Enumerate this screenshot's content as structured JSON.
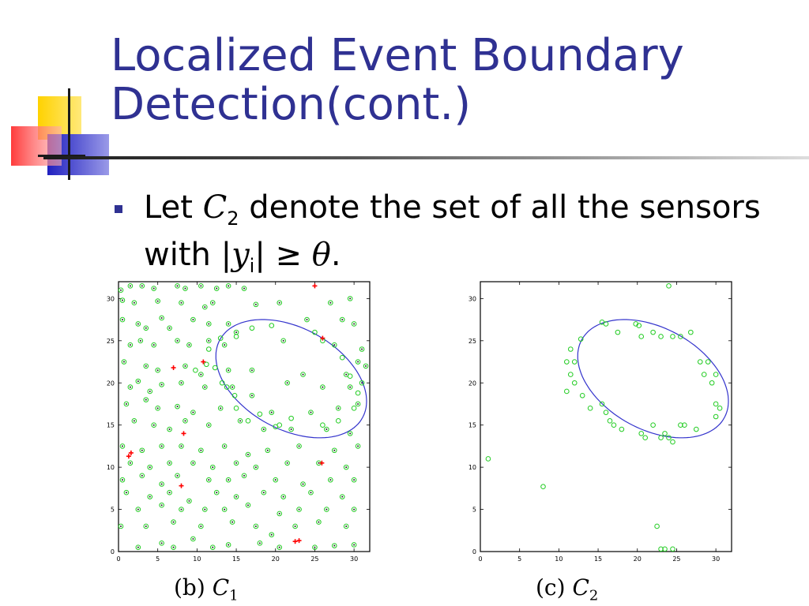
{
  "title_line1": "Localized Event Boundary",
  "title_line2": "Detection(cont.)",
  "bullet": {
    "part1": "Let ",
    "var_c": "C",
    "sub_2": "2",
    "part2": " denote the set of all the sensors",
    "line2_prefix": "with |",
    "var_y": "y",
    "sub_i": "i",
    "line2_mid": "| ≥ ",
    "theta": "θ",
    "line2_end": "."
  },
  "colors": {
    "title": "#2f3192",
    "bullet": "#2f3192",
    "sensor_green": "#22cc22",
    "sensor_red": "#ff0000",
    "ellipse": "#3333cc",
    "deco_yellow": "#ffd200",
    "deco_blue": "#2020c0",
    "deco_red": "#ff3030"
  },
  "chart_data": [
    {
      "type": "scatter",
      "caption_label": "(b)",
      "caption_var": "C",
      "caption_sub": "1",
      "xlim": [
        0,
        32
      ],
      "ylim": [
        0,
        32
      ],
      "xticks": [
        0,
        5,
        10,
        15,
        20,
        25,
        30
      ],
      "yticks": [
        0,
        5,
        10,
        15,
        20,
        25,
        30
      ],
      "ellipse": {
        "cx": 22.0,
        "cy": 20.5,
        "rx": 10.2,
        "ry": 6.1,
        "angle_deg": -25
      },
      "series": [
        {
          "marker": "circle-dot",
          "points": [
            [
              0.3,
              31.0
            ],
            [
              1.5,
              31.5
            ],
            [
              3.0,
              31.5
            ],
            [
              4.5,
              31.2
            ],
            [
              7.5,
              31.5
            ],
            [
              8.5,
              31.2
            ],
            [
              10.5,
              31.5
            ],
            [
              12.5,
              31.2
            ],
            [
              14.0,
              31.5
            ],
            [
              16.0,
              31.2
            ],
            [
              0.5,
              29.8
            ],
            [
              2.0,
              29.5
            ],
            [
              5.0,
              29.7
            ],
            [
              8.0,
              29.5
            ],
            [
              11.0,
              29.0
            ],
            [
              12.0,
              29.5
            ],
            [
              17.5,
              29.3
            ],
            [
              20.5,
              29.5
            ],
            [
              27.0,
              29.5
            ],
            [
              29.5,
              30.0
            ],
            [
              0.5,
              27.5
            ],
            [
              2.5,
              27.0
            ],
            [
              3.5,
              26.5
            ],
            [
              5.5,
              27.7
            ],
            [
              6.5,
              26.5
            ],
            [
              9.5,
              27.5
            ],
            [
              11.5,
              27.0
            ],
            [
              14.0,
              27.0
            ],
            [
              15.0,
              26.0
            ],
            [
              24.0,
              27.5
            ],
            [
              28.5,
              27.5
            ],
            [
              30.0,
              27.0
            ],
            [
              1.5,
              24.5
            ],
            [
              2.8,
              25.0
            ],
            [
              4.5,
              24.5
            ],
            [
              7.5,
              25.0
            ],
            [
              9.0,
              24.5
            ],
            [
              11.5,
              25.0
            ],
            [
              13.5,
              24.5
            ],
            [
              21.0,
              25.0
            ],
            [
              27.5,
              24.5
            ],
            [
              31.0,
              24.0
            ],
            [
              0.7,
              22.5
            ],
            [
              3.5,
              22.0
            ],
            [
              5.0,
              21.5
            ],
            [
              8.5,
              22.0
            ],
            [
              10.5,
              21.0
            ],
            [
              14.0,
              21.5
            ],
            [
              17.0,
              21.5
            ],
            [
              23.5,
              21.0
            ],
            [
              29.0,
              21.0
            ],
            [
              30.5,
              22.5
            ],
            [
              1.5,
              19.5
            ],
            [
              2.5,
              20.2
            ],
            [
              4.0,
              19.0
            ],
            [
              5.5,
              19.8
            ],
            [
              8.0,
              20.0
            ],
            [
              11.0,
              19.5
            ],
            [
              14.5,
              19.5
            ],
            [
              17.0,
              18.5
            ],
            [
              21.5,
              20.0
            ],
            [
              26.0,
              19.5
            ],
            [
              29.5,
              19.5
            ],
            [
              31.0,
              20.0
            ],
            [
              1.0,
              17.5
            ],
            [
              3.5,
              18.0
            ],
            [
              5.0,
              17.0
            ],
            [
              7.5,
              17.2
            ],
            [
              9.5,
              16.5
            ],
            [
              13.0,
              17.0
            ],
            [
              19.5,
              16.5
            ],
            [
              24.5,
              16.5
            ],
            [
              28.0,
              17.0
            ],
            [
              30.5,
              17.5
            ],
            [
              2.0,
              15.5
            ],
            [
              4.5,
              15.0
            ],
            [
              6.5,
              14.5
            ],
            [
              8.5,
              15.5
            ],
            [
              11.5,
              15.0
            ],
            [
              15.5,
              15.5
            ],
            [
              18.5,
              14.5
            ],
            [
              22.0,
              14.5
            ],
            [
              26.5,
              14.5
            ],
            [
              29.5,
              14.0
            ],
            [
              0.5,
              12.5
            ],
            [
              3.0,
              12.0
            ],
            [
              5.5,
              12.5
            ],
            [
              8.0,
              12.5
            ],
            [
              10.5,
              12.0
            ],
            [
              13.5,
              12.5
            ],
            [
              16.5,
              11.5
            ],
            [
              19.0,
              12.0
            ],
            [
              23.0,
              12.5
            ],
            [
              27.5,
              12.0
            ],
            [
              30.5,
              12.5
            ],
            [
              1.5,
              10.5
            ],
            [
              4.0,
              10.0
            ],
            [
              6.5,
              10.5
            ],
            [
              9.5,
              10.5
            ],
            [
              12.0,
              10.0
            ],
            [
              15.0,
              10.5
            ],
            [
              17.5,
              10.0
            ],
            [
              21.5,
              10.5
            ],
            [
              25.5,
              10.5
            ],
            [
              29.0,
              10.0
            ],
            [
              0.5,
              8.5
            ],
            [
              3.0,
              9.0
            ],
            [
              5.5,
              8.0
            ],
            [
              7.5,
              9.0
            ],
            [
              11.5,
              8.5
            ],
            [
              14.0,
              8.5
            ],
            [
              16.0,
              9.0
            ],
            [
              20.0,
              8.5
            ],
            [
              23.5,
              8.0
            ],
            [
              27.0,
              8.5
            ],
            [
              30.0,
              8.5
            ],
            [
              1.0,
              7.0
            ],
            [
              4.0,
              6.5
            ],
            [
              6.5,
              7.0
            ],
            [
              9.0,
              6.0
            ],
            [
              12.5,
              7.0
            ],
            [
              15.0,
              6.5
            ],
            [
              18.5,
              7.0
            ],
            [
              21.0,
              6.5
            ],
            [
              24.5,
              7.0
            ],
            [
              28.5,
              6.5
            ],
            [
              2.5,
              5.0
            ],
            [
              5.5,
              5.5
            ],
            [
              8.0,
              5.0
            ],
            [
              11.0,
              5.0
            ],
            [
              13.5,
              5.0
            ],
            [
              16.5,
              5.5
            ],
            [
              20.5,
              4.5
            ],
            [
              23.0,
              5.0
            ],
            [
              26.5,
              5.0
            ],
            [
              30.0,
              5.0
            ],
            [
              0.3,
              3.0
            ],
            [
              3.5,
              3.0
            ],
            [
              7.0,
              3.5
            ],
            [
              10.5,
              3.0
            ],
            [
              14.5,
              3.5
            ],
            [
              17.5,
              3.0
            ],
            [
              19.5,
              2.0
            ],
            [
              22.5,
              3.0
            ],
            [
              25.5,
              3.5
            ],
            [
              29.0,
              3.0
            ],
            [
              2.5,
              0.5
            ],
            [
              5.5,
              1.0
            ],
            [
              7.0,
              0.5
            ],
            [
              9.5,
              1.5
            ],
            [
              12.0,
              0.5
            ],
            [
              14.0,
              0.8
            ],
            [
              18.0,
              1.0
            ],
            [
              20.5,
              0.5
            ],
            [
              25.0,
              0.5
            ],
            [
              27.5,
              0.7
            ],
            [
              30.0,
              0.8
            ],
            [
              31.5,
              22.0
            ]
          ]
        },
        {
          "marker": "circle",
          "points": [
            [
              11.5,
              24.0
            ],
            [
              13.0,
              25.3
            ],
            [
              15.0,
              25.5
            ],
            [
              17.0,
              26.5
            ],
            [
              19.5,
              26.8
            ],
            [
              12.3,
              21.8
            ],
            [
              11.2,
              22.2
            ],
            [
              13.2,
              20.0
            ],
            [
              13.8,
              19.5
            ],
            [
              14.8,
              18.5
            ],
            [
              15.0,
              17.0
            ],
            [
              16.5,
              15.5
            ],
            [
              18.0,
              16.3
            ],
            [
              20.0,
              14.8
            ],
            [
              25.0,
              26.0
            ],
            [
              26.0,
              25.0
            ],
            [
              28.5,
              23.0
            ],
            [
              29.5,
              20.8
            ],
            [
              30.5,
              18.8
            ],
            [
              30.0,
              17.0
            ],
            [
              28.0,
              15.5
            ],
            [
              26.0,
              15.0
            ],
            [
              22.0,
              15.8
            ],
            [
              20.5,
              15.0
            ],
            [
              9.8,
              21.5
            ]
          ]
        },
        {
          "marker": "plus",
          "points": [
            [
              25.0,
              31.5
            ],
            [
              7.0,
              21.8
            ],
            [
              10.8,
              22.5
            ],
            [
              8.3,
              14.0
            ],
            [
              1.3,
              11.3
            ],
            [
              1.6,
              11.7
            ],
            [
              26.0,
              25.3
            ],
            [
              25.9,
              10.5
            ],
            [
              8.0,
              7.8
            ],
            [
              22.5,
              1.2
            ],
            [
              23.0,
              1.3
            ]
          ]
        }
      ]
    },
    {
      "type": "scatter",
      "caption_label": "(c)",
      "caption_var": "C",
      "caption_sub": "2",
      "xlim": [
        0,
        32
      ],
      "ylim": [
        0,
        32
      ],
      "xticks": [
        0,
        5,
        10,
        15,
        20,
        25,
        30
      ],
      "yticks": [
        0,
        5,
        10,
        15,
        20,
        25,
        30
      ],
      "ellipse": {
        "cx": 22.0,
        "cy": 20.5,
        "rx": 10.2,
        "ry": 6.1,
        "angle_deg": -25
      },
      "series": [
        {
          "marker": "circle",
          "points": [
            [
              24.0,
              31.5
            ],
            [
              15.5,
              27.2
            ],
            [
              16.0,
              27.0
            ],
            [
              19.8,
              27.0
            ],
            [
              20.2,
              26.8
            ],
            [
              22.0,
              26.0
            ],
            [
              23.0,
              25.5
            ],
            [
              24.5,
              25.5
            ],
            [
              25.5,
              25.5
            ],
            [
              26.8,
              26.0
            ],
            [
              17.5,
              26.0
            ],
            [
              20.5,
              25.5
            ],
            [
              11.5,
              24.0
            ],
            [
              11.0,
              22.5
            ],
            [
              12.0,
              22.5
            ],
            [
              11.5,
              21.0
            ],
            [
              12.0,
              20.0
            ],
            [
              11.0,
              19.0
            ],
            [
              13.0,
              18.5
            ],
            [
              14.0,
              17.0
            ],
            [
              15.5,
              17.5
            ],
            [
              16.0,
              16.5
            ],
            [
              16.5,
              15.5
            ],
            [
              17.0,
              15.0
            ],
            [
              18.0,
              14.5
            ],
            [
              20.5,
              14.0
            ],
            [
              21.0,
              13.5
            ],
            [
              22.0,
              15.0
            ],
            [
              23.0,
              13.5
            ],
            [
              23.5,
              14.0
            ],
            [
              24.0,
              13.5
            ],
            [
              24.5,
              13.0
            ],
            [
              25.5,
              15.0
            ],
            [
              26.0,
              15.0
            ],
            [
              27.5,
              14.5
            ],
            [
              28.0,
              22.5
            ],
            [
              28.5,
              21.0
            ],
            [
              29.0,
              22.5
            ],
            [
              29.5,
              20.0
            ],
            [
              30.0,
              21.0
            ],
            [
              30.0,
              17.5
            ],
            [
              30.5,
              17.0
            ],
            [
              30.0,
              16.0
            ],
            [
              12.8,
              25.2
            ],
            [
              1.0,
              11.0
            ],
            [
              8.0,
              7.7
            ],
            [
              22.5,
              3.0
            ],
            [
              23.0,
              0.3
            ],
            [
              23.5,
              0.3
            ],
            [
              24.5,
              0.3
            ]
          ]
        }
      ]
    }
  ]
}
